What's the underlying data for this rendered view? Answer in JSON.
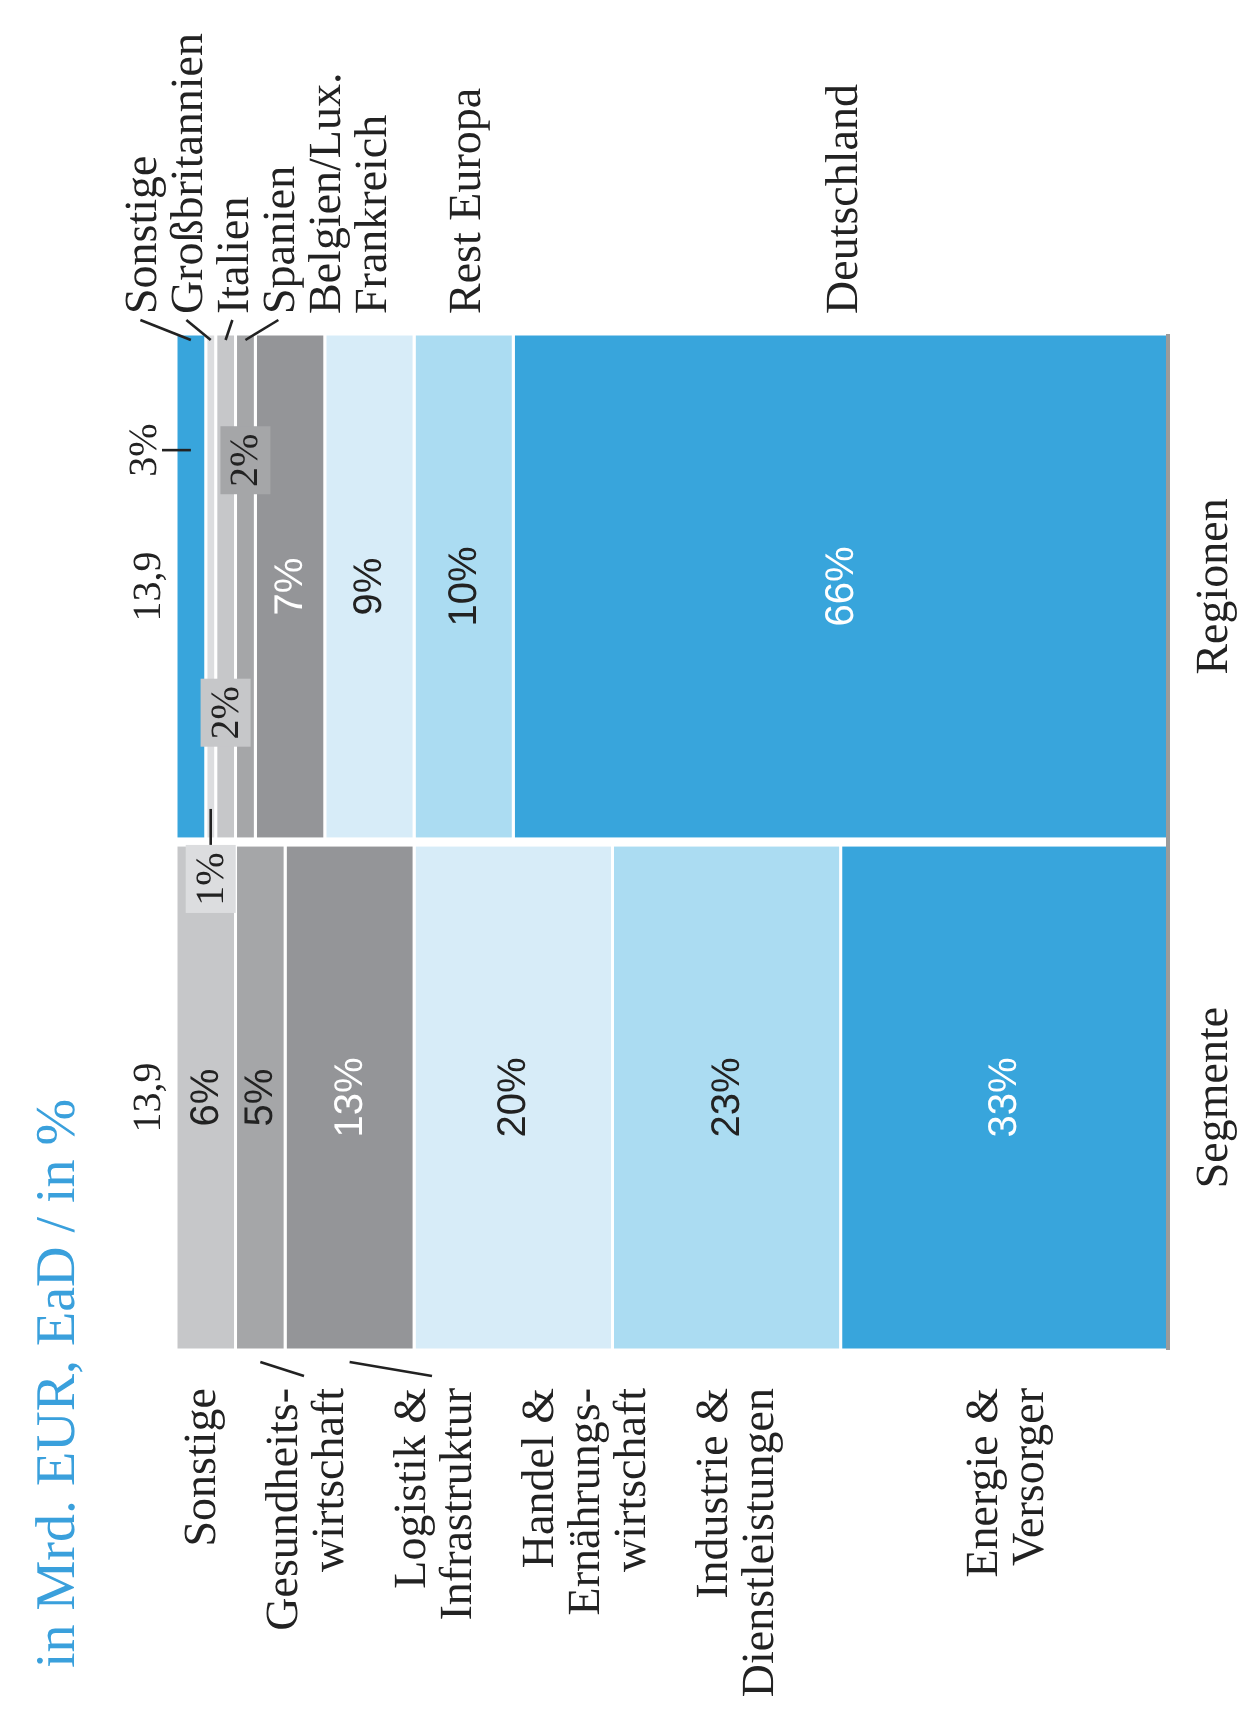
{
  "chart_data": {
    "type": "bar",
    "orientation": "horizontal",
    "subtitle": "in Mrd. EUR, EaD / in %",
    "categories": [
      "Regionen",
      "Segmente"
    ],
    "stacked": true,
    "xlim": [
      100,
      0
    ],
    "tick_labels": "y",
    "annotations": [
      {
        "text": "13,9",
        "x": 100,
        "y": "Regionen"
      },
      {
        "text": "13,9",
        "x": 100,
        "y": "Segmente"
      }
    ],
    "series": [
      {
        "name": "Energie &\nVersorger",
        "color": "#38a5dc",
        "values": [
          null,
          33
        ],
        "value_labels": [
          null,
          "33%"
        ]
      },
      {
        "name": "Industrie &\nDienstleistungen",
        "color": "#abdcf2",
        "values": [
          null,
          23
        ],
        "value_labels": [
          null,
          "23%"
        ]
      },
      {
        "name": "Handel &\nErnährungs-\nwirtschaft",
        "color": "#d7ecf8",
        "values": [
          null,
          20
        ],
        "value_labels": [
          null,
          "20%"
        ]
      },
      {
        "name": "Logistik &\nInfrastruktur",
        "color": "#949598",
        "values": [
          null,
          13
        ],
        "value_labels": [
          null,
          "13%"
        ]
      },
      {
        "name": "Gesundheits-\nwirtschaft",
        "color": "#a5a6a8",
        "values": [
          null,
          5
        ],
        "value_labels": [
          null,
          "5%"
        ]
      },
      {
        "name": "Sonstige",
        "color": "#c6c7c9",
        "values": [
          null,
          6
        ],
        "value_labels": [
          null,
          "6%"
        ]
      },
      {
        "name": "Deutschland",
        "color": "#38a5dc",
        "values": [
          66,
          null
        ],
        "value_labels": [
          "66%",
          null
        ]
      },
      {
        "name": "Rest Europa",
        "color": "#abdcf2",
        "values": [
          10,
          null
        ],
        "value_labels": [
          "10%",
          null
        ]
      },
      {
        "name": "Frankreich",
        "color": "#d7ecf8",
        "values": [
          9,
          null
        ],
        "value_labels": [
          "9%",
          null
        ]
      },
      {
        "name": "Belgien/Lux.",
        "color": "#949598",
        "values": [
          7,
          null
        ],
        "value_labels": [
          "7%",
          null
        ]
      },
      {
        "name": "Spanien",
        "color": "#a5a6a8",
        "values": [
          2,
          null
        ],
        "value_labels": [
          "2%",
          null
        ]
      },
      {
        "name": "Italien",
        "color": "#c6c7c9",
        "values": [
          2,
          null
        ],
        "value_labels": [
          "2%",
          null
        ]
      },
      {
        "name": "Großbritannien",
        "color": "#dcdddf",
        "values": [
          1,
          null
        ],
        "value_labels": [
          "1%",
          null
        ]
      },
      {
        "name": "Sonstige",
        "color": "#38a5dc",
        "values": [
          3,
          null
        ],
        "value_labels": [
          "3%",
          null
        ]
      }
    ]
  }
}
